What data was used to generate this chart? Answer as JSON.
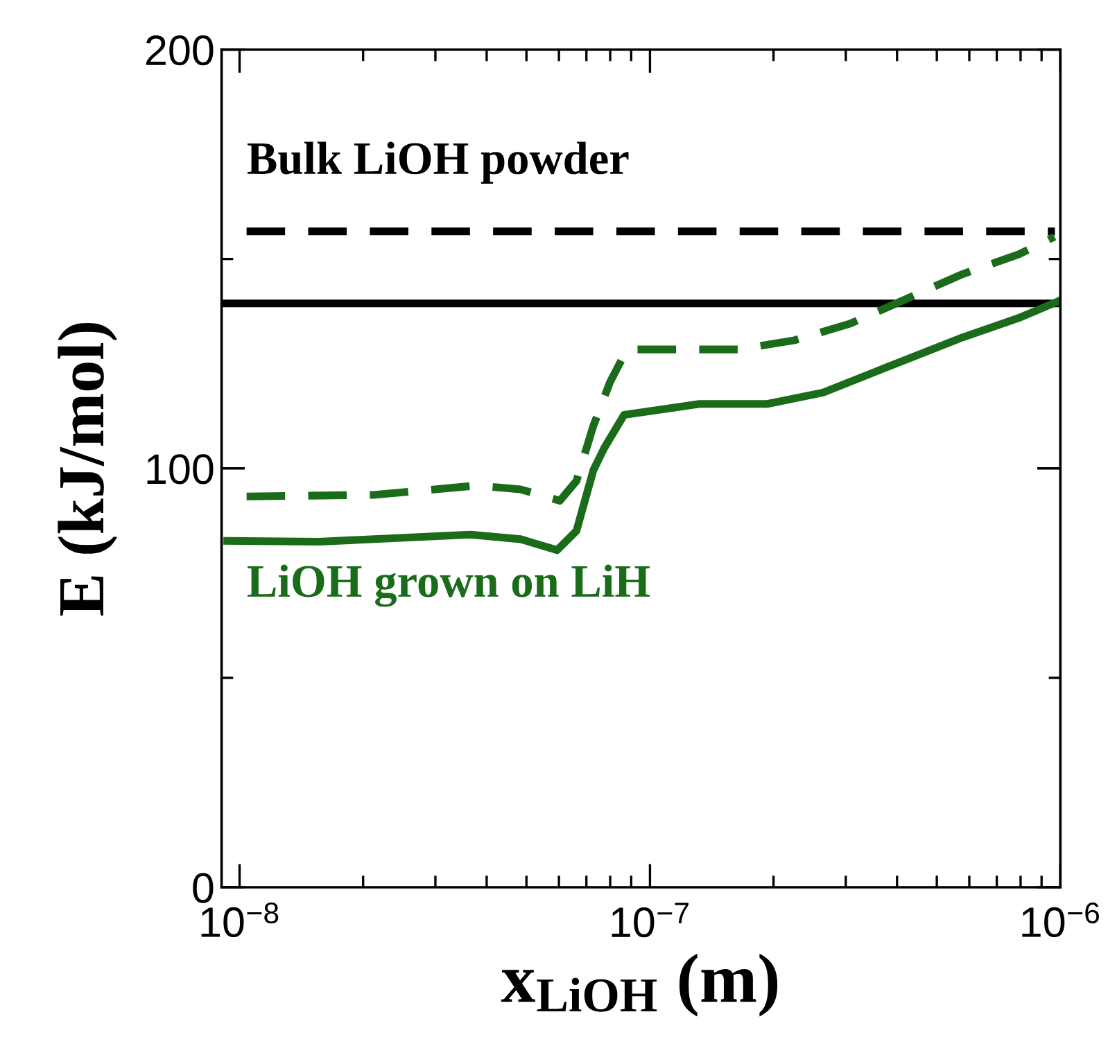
{
  "chart_data": {
    "type": "line",
    "xlabel": "x$_{LiOH}$ (m)",
    "ylabel": "E (kJ/mol)",
    "log": "x",
    "grid": false,
    "legend": false,
    "xlim": [
      9.04e-09,
      1e-06
    ],
    "xticks": [
      {
        "value": 1e-08,
        "label": "10$^{−8}$"
      },
      {
        "value": 1e-07,
        "label": "10$^{−7}$"
      },
      {
        "value": 1e-06,
        "label": "10$^{−6}$"
      }
    ],
    "ylim": [
      0,
      200
    ],
    "yticks": [
      0,
      {
        "value": 50,
        "label": null
      },
      100,
      {
        "value": 150,
        "label": null
      },
      200
    ],
    "series": [
      {
        "color": "#000000",
        "line_style": "dashed",
        "x": [
          1.04e-08,
          9.7e-07
        ],
        "values": [
          156.6,
          156.6
        ]
      },
      {
        "color": "#000000",
        "line_style": "solid",
        "x": [
          9.2e-09,
          9.9e-07
        ],
        "values": [
          139.4,
          139.4
        ]
      },
      {
        "color": "#1a6b1a",
        "line_style": "dashed",
        "x": [
          1.04e-08,
          2.14e-08,
          3.77e-08,
          4.84e-08,
          6.03e-08,
          6.62e-08,
          7.28e-08,
          8e-08,
          8.79e-08,
          1.64e-07,
          2.25e-07,
          3.08e-07,
          4.22e-07,
          5.78e-07,
          7.91e-07,
          9.68e-07
        ],
        "values": [
          93.3,
          93.7,
          95.9,
          95.0,
          92.3,
          97.0,
          110.2,
          120.7,
          128.4,
          128.4,
          130.6,
          134.6,
          140.5,
          146.4,
          151.1,
          155.3
        ]
      },
      {
        "color": "#1a6b1a",
        "line_style": "solid",
        "x": [
          9.33e-09,
          1.56e-08,
          3.65e-08,
          4.84e-08,
          5.94e-08,
          6.62e-08,
          7.28e-08,
          7.74e-08,
          8.65e-08,
          1.32e-07,
          1.93e-07,
          2.64e-07,
          3.61e-07,
          5.78e-07,
          7.91e-07,
          9.82e-07
        ],
        "values": [
          82.7,
          82.5,
          84.2,
          83.1,
          80.5,
          85.1,
          99.6,
          104.9,
          112.8,
          115.4,
          115.4,
          118.1,
          123.4,
          131.3,
          135.9,
          139.8
        ]
      }
    ],
    "annotations": [
      "Bulk LiOH powder",
      "LiOH grown on LiH"
    ]
  }
}
